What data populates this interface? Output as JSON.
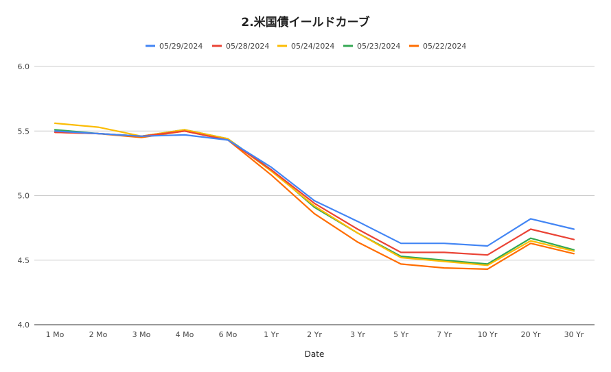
{
  "chart_data": {
    "type": "line",
    "title": "2.米国債イールドカーブ",
    "xlabel": "Date",
    "ylabel": "",
    "categories": [
      "1 Mo",
      "2 Mo",
      "3 Mo",
      "4 Mo",
      "6 Mo",
      "1 Yr",
      "2 Yr",
      "3 Yr",
      "5 Yr",
      "7 Yr",
      "10 Yr",
      "20 Yr",
      "30 Yr"
    ],
    "ylim": [
      4.0,
      6.0
    ],
    "yticks": [
      "4.0",
      "4.5",
      "5.0",
      "5.5",
      "6.0"
    ],
    "grid": true,
    "legend_position": "top",
    "series": [
      {
        "name": "05/29/2024",
        "color": "#4285F4",
        "values": [
          5.5,
          5.48,
          5.46,
          5.47,
          5.43,
          5.22,
          4.96,
          4.8,
          4.63,
          4.63,
          4.61,
          4.82,
          4.74
        ]
      },
      {
        "name": "05/28/2024",
        "color": "#EA4335",
        "values": [
          5.49,
          5.48,
          5.46,
          5.5,
          5.43,
          5.2,
          4.94,
          4.74,
          4.56,
          4.56,
          4.54,
          4.74,
          4.66
        ]
      },
      {
        "name": "05/24/2024",
        "color": "#FBBC04",
        "values": [
          5.56,
          5.53,
          5.46,
          5.51,
          5.44,
          5.19,
          4.92,
          4.71,
          4.52,
          4.49,
          4.46,
          4.65,
          4.57
        ]
      },
      {
        "name": "05/23/2024",
        "color": "#34A853",
        "values": [
          5.51,
          5.48,
          5.46,
          5.51,
          5.44,
          5.2,
          4.91,
          4.71,
          4.53,
          4.5,
          4.47,
          4.67,
          4.58
        ]
      },
      {
        "name": "05/22/2024",
        "color": "#FF6D01",
        "values": [
          5.49,
          5.48,
          5.45,
          5.5,
          5.43,
          5.16,
          4.86,
          4.64,
          4.47,
          4.44,
          4.43,
          4.63,
          4.55
        ]
      }
    ]
  }
}
